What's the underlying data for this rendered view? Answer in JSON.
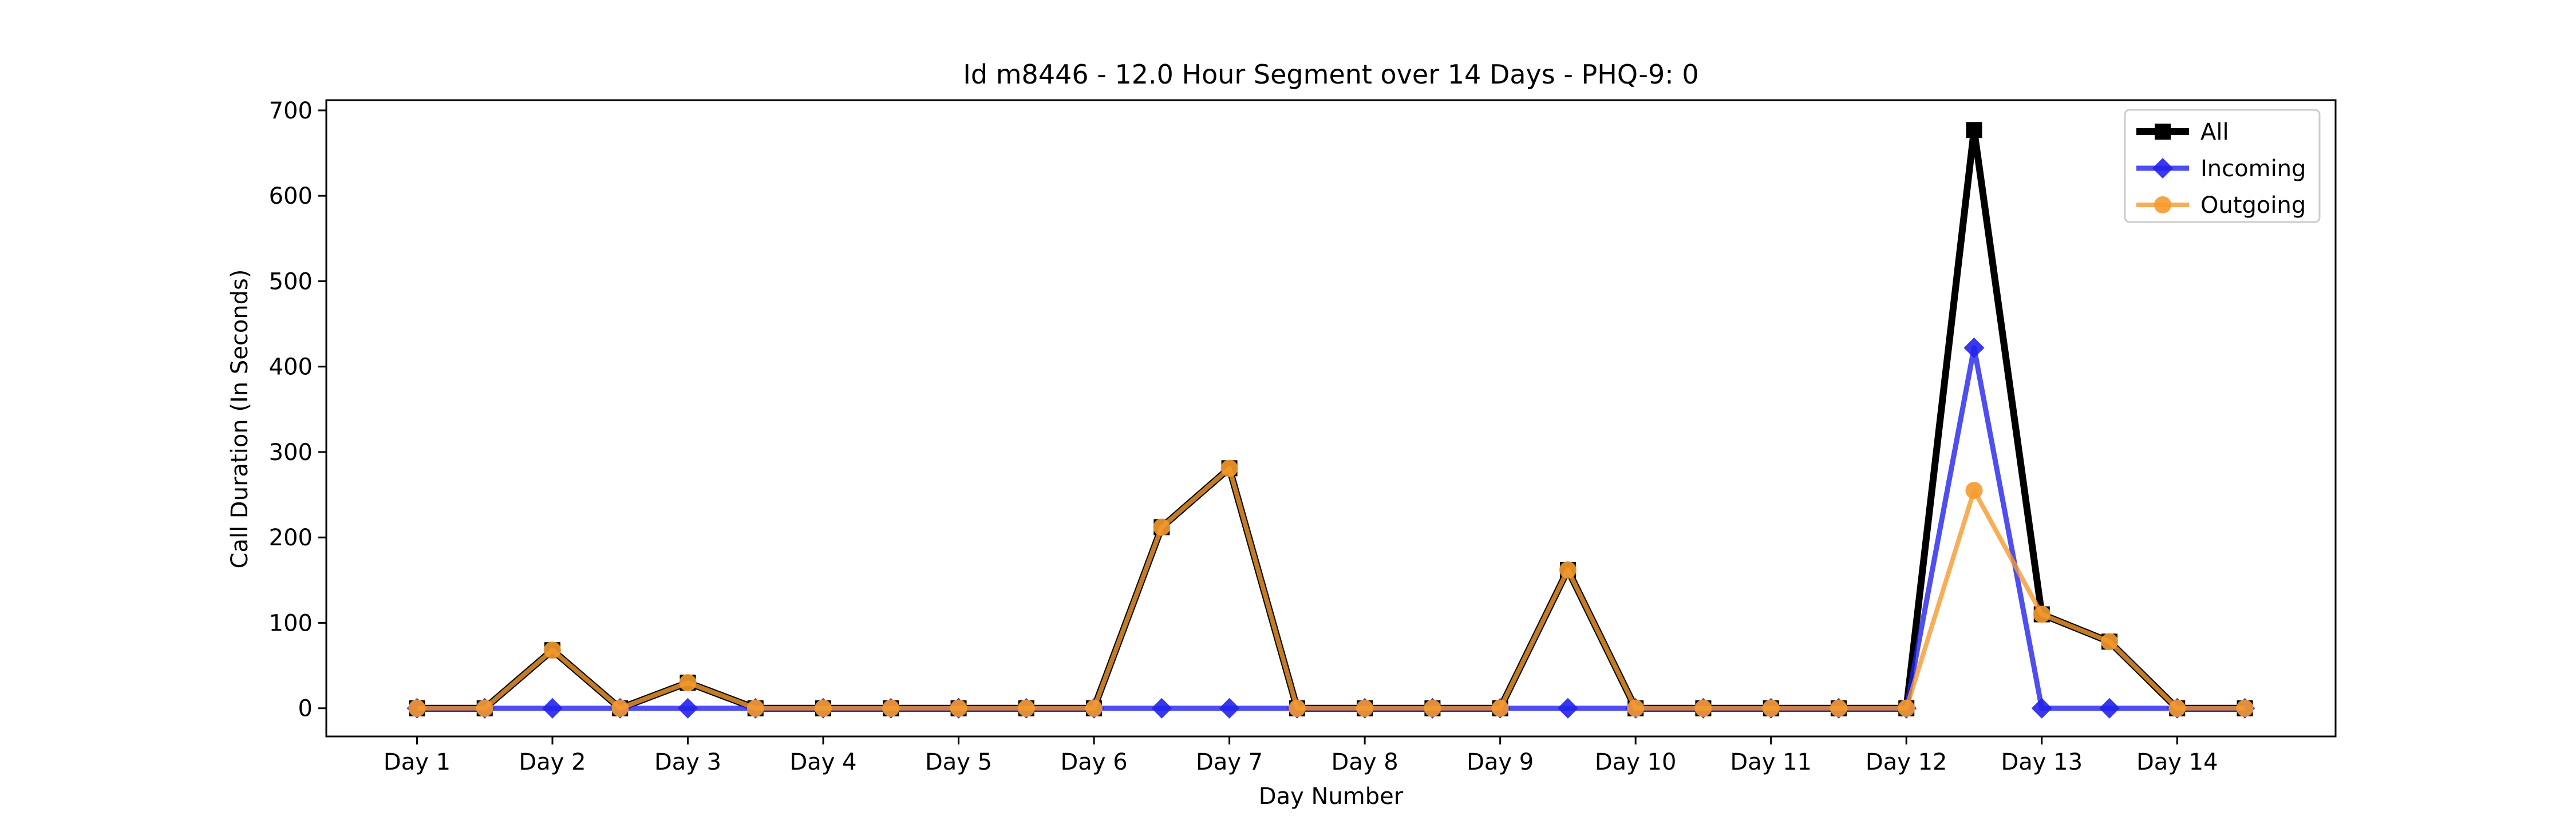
{
  "chart_data": {
    "type": "line",
    "title": "Id m8446 - 12.0 Hour Segment over 14 Days - PHQ-9: 0",
    "xlabel": "Day Number",
    "ylabel": "Call Duration (In Seconds)",
    "ylim": [
      -33,
      712
    ],
    "yticks": [
      0,
      100,
      200,
      300,
      400,
      500,
      600,
      700
    ],
    "xlim": [
      0.33,
      15.17
    ],
    "xticks": [
      {
        "x": 1,
        "label": "Day 1"
      },
      {
        "x": 2,
        "label": "Day 2"
      },
      {
        "x": 3,
        "label": "Day 3"
      },
      {
        "x": 4,
        "label": "Day 4"
      },
      {
        "x": 5,
        "label": "Day 5"
      },
      {
        "x": 6,
        "label": "Day 6"
      },
      {
        "x": 7,
        "label": "Day 7"
      },
      {
        "x": 8,
        "label": "Day 8"
      },
      {
        "x": 9,
        "label": "Day 9"
      },
      {
        "x": 10,
        "label": "Day 10"
      },
      {
        "x": 11,
        "label": "Day 11"
      },
      {
        "x": 12,
        "label": "Day 12"
      },
      {
        "x": 13,
        "label": "Day 13"
      },
      {
        "x": 14,
        "label": "Day 14"
      }
    ],
    "x": [
      1,
      1.5,
      2,
      2.5,
      3,
      3.5,
      4,
      4.5,
      5,
      5.5,
      6,
      6.5,
      7,
      7.5,
      8,
      8.5,
      9,
      9.5,
      10,
      10.5,
      11,
      11.5,
      12,
      12.5,
      13,
      13.5,
      14,
      14.5
    ],
    "series": [
      {
        "name": "All",
        "color": "#000000",
        "marker": "square",
        "values": [
          0,
          0,
          68,
          0,
          30,
          0,
          0,
          0,
          0,
          0,
          0,
          212,
          281,
          0,
          0,
          0,
          0,
          162,
          0,
          0,
          0,
          0,
          0,
          677,
          110,
          78,
          0,
          0
        ]
      },
      {
        "name": "Incoming",
        "color": "#2222ee",
        "marker": "diamond",
        "values": [
          0,
          0,
          0,
          0,
          0,
          0,
          0,
          0,
          0,
          0,
          0,
          0,
          0,
          0,
          0,
          0,
          0,
          0,
          0,
          0,
          0,
          0,
          0,
          422,
          0,
          0,
          0,
          0
        ]
      },
      {
        "name": "Outgoing",
        "color": "#f59a2e",
        "marker": "circle",
        "values": [
          0,
          0,
          68,
          0,
          30,
          0,
          0,
          0,
          0,
          0,
          0,
          212,
          281,
          0,
          0,
          0,
          0,
          162,
          0,
          0,
          0,
          0,
          0,
          255,
          110,
          78,
          0,
          0
        ]
      }
    ],
    "legend_position": "top-right",
    "grid": false
  }
}
